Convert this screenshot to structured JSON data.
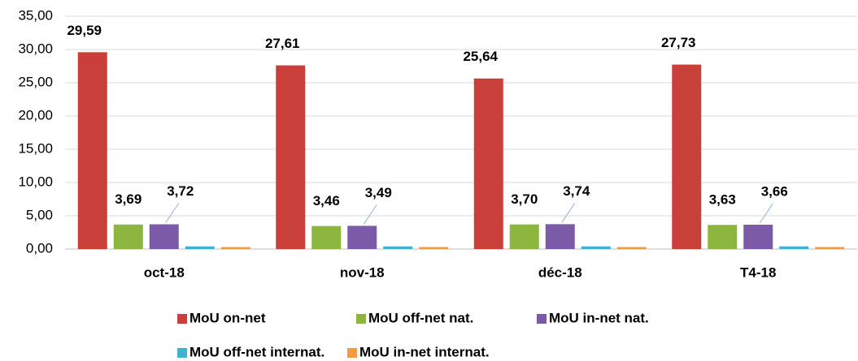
{
  "chart_data": {
    "type": "bar",
    "categories": [
      "oct-18",
      "nov-18",
      "déc-18",
      "T4-18"
    ],
    "series": [
      {
        "name": "MoU on-net",
        "color": "#c9403a",
        "values": [
          29.59,
          27.61,
          25.64,
          27.73
        ],
        "value_labels": [
          "29,59",
          "27,61",
          "25,64",
          "27,73"
        ]
      },
      {
        "name": "MoU off-net nat.",
        "color": "#8db63f",
        "values": [
          3.69,
          3.46,
          3.7,
          3.63
        ],
        "value_labels": [
          "3,69",
          "3,46",
          "3,70",
          "3,63"
        ]
      },
      {
        "name": "MoU in-net nat.",
        "color": "#7b5ba8",
        "values": [
          3.72,
          3.49,
          3.74,
          3.66
        ],
        "value_labels": [
          "3,72",
          "3,49",
          "3,74",
          "3,66"
        ]
      },
      {
        "name": "MoU off-net internat.",
        "color": "#3fb1d1",
        "values": [
          0.4,
          0.4,
          0.4,
          0.4
        ]
      },
      {
        "name": "MoU in-net internat.",
        "color": "#f39a45",
        "values": [
          0.3,
          0.3,
          0.3,
          0.3
        ]
      }
    ],
    "ylim": [
      0,
      35
    ],
    "yticks": [
      {
        "value": 0,
        "label": "0,00"
      },
      {
        "value": 5,
        "label": "5,00"
      },
      {
        "value": 10,
        "label": "10,00"
      },
      {
        "value": 15,
        "label": "15,00"
      },
      {
        "value": 20,
        "label": "20,00"
      },
      {
        "value": 25,
        "label": "25,00"
      },
      {
        "value": 30,
        "label": "30,00"
      },
      {
        "value": 35,
        "label": "35,00"
      }
    ],
    "grid": true
  }
}
